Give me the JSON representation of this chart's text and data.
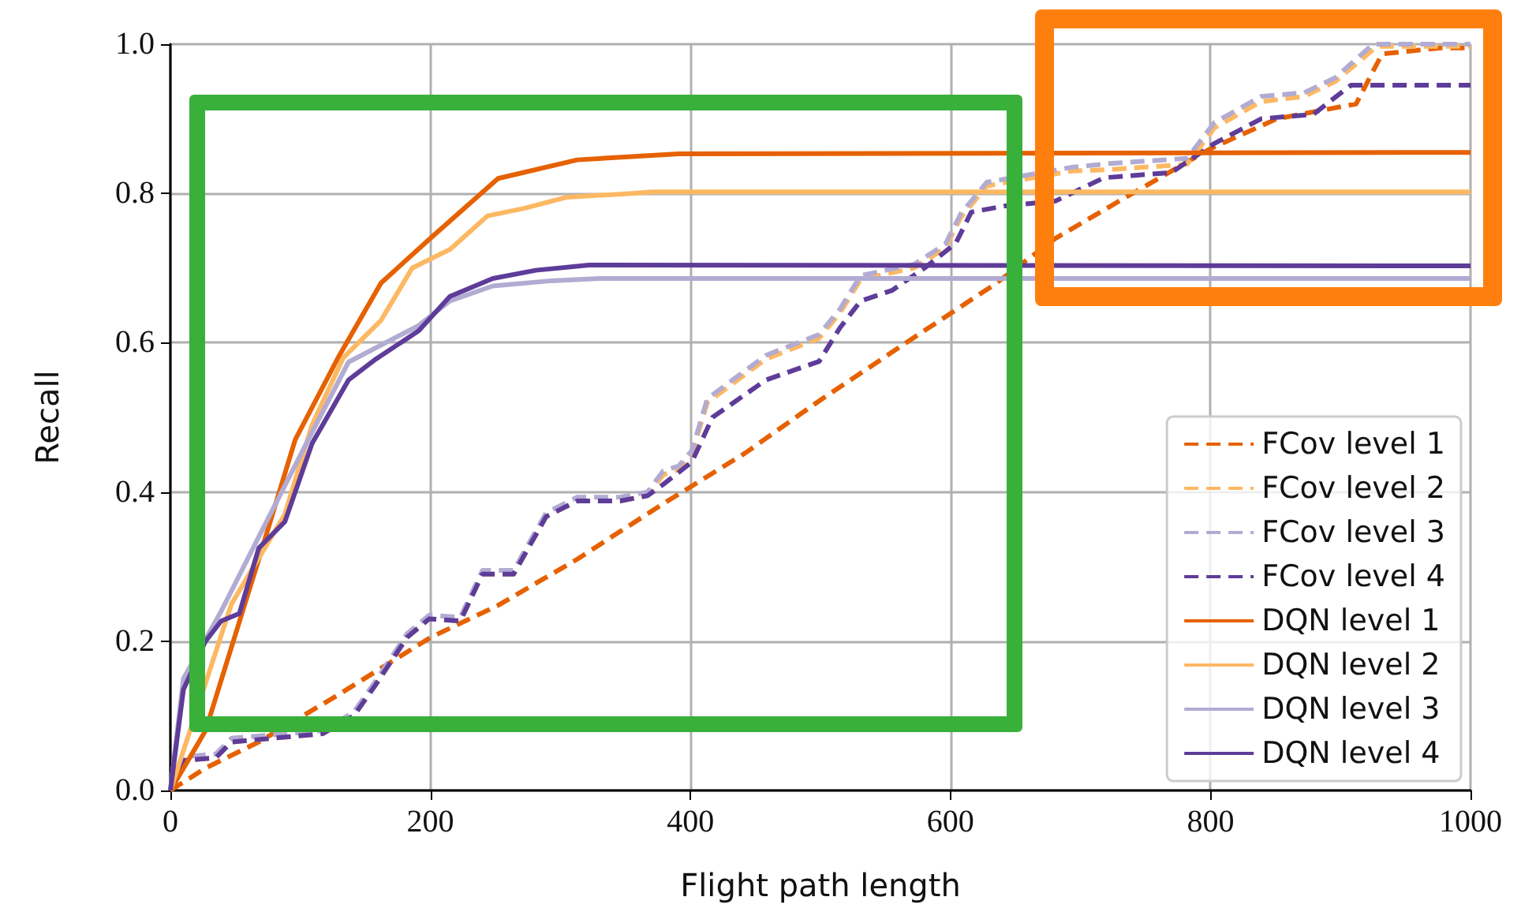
{
  "chart_data": {
    "type": "line",
    "xlabel": "Flight path length",
    "ylabel": "Recall",
    "xlim": [
      0,
      1000
    ],
    "ylim": [
      0,
      1
    ],
    "xticks": [
      0,
      200,
      400,
      600,
      800,
      1000
    ],
    "yticks": [
      {
        "value": 0,
        "label": "0.0"
      },
      {
        "value": 0.2,
        "label": "0.2"
      },
      {
        "value": 0.4,
        "label": "0.4"
      },
      {
        "value": 0.6,
        "label": "0.6"
      },
      {
        "value": 0.8,
        "label": "0.8"
      },
      {
        "value": 1,
        "label": "1.0"
      }
    ],
    "grid": true,
    "legend": "bottom right",
    "marker": "none",
    "series": [
      {
        "name": "FCov level 1",
        "color": "#e66101",
        "line_style": "dashed",
        "x": [
          0,
          27,
          68,
          129,
          200,
          252,
          313,
          377,
          442,
          499,
          572,
          633,
          681,
          730,
          800,
          851,
          912,
          932,
          977,
          1000
        ],
        "values": [
          0,
          0.03,
          0.065,
          0.128,
          0.205,
          0.248,
          0.31,
          0.382,
          0.452,
          0.522,
          0.607,
          0.677,
          0.74,
          0.79,
          0.86,
          0.9,
          0.92,
          0.987,
          0.995,
          0.995
        ]
      },
      {
        "name": "FCov level 2",
        "color": "#fdb863",
        "line_style": "dashed",
        "x": [
          0,
          10,
          35,
          47,
          117,
          141,
          158,
          182,
          199,
          223,
          240,
          264,
          289,
          313,
          346,
          367,
          379,
          391,
          401,
          413,
          458,
          499,
          515,
          531,
          572,
          596,
          608,
          628,
          693,
          722,
          782,
          803,
          839,
          872,
          896,
          928,
          1000
        ],
        "values": [
          0,
          0.04,
          0.044,
          0.065,
          0.076,
          0.1,
          0.142,
          0.205,
          0.23,
          0.227,
          0.29,
          0.29,
          0.367,
          0.388,
          0.388,
          0.395,
          0.423,
          0.43,
          0.45,
          0.52,
          0.578,
          0.606,
          0.64,
          0.685,
          0.7,
          0.727,
          0.768,
          0.81,
          0.83,
          0.832,
          0.839,
          0.888,
          0.923,
          0.93,
          0.95,
          0.997,
          0.997
        ]
      },
      {
        "name": "FCov level 3",
        "color": "#b2abd2",
        "line_style": "dashed",
        "x": [
          0,
          10,
          35,
          47,
          117,
          141,
          158,
          182,
          199,
          223,
          240,
          264,
          289,
          313,
          346,
          367,
          379,
          391,
          401,
          413,
          458,
          499,
          515,
          531,
          572,
          596,
          608,
          628,
          693,
          722,
          782,
          803,
          839,
          872,
          896,
          925,
          1000
        ],
        "values": [
          0,
          0.045,
          0.049,
          0.07,
          0.08,
          0.105,
          0.147,
          0.21,
          0.235,
          0.232,
          0.295,
          0.295,
          0.372,
          0.393,
          0.393,
          0.4,
          0.428,
          0.435,
          0.455,
          0.525,
          0.583,
          0.611,
          0.645,
          0.69,
          0.705,
          0.732,
          0.773,
          0.815,
          0.835,
          0.84,
          0.847,
          0.895,
          0.93,
          0.935,
          0.955,
          1,
          1
        ]
      },
      {
        "name": "FCov level 4",
        "color": "#5e3c99",
        "line_style": "dashed",
        "x": [
          0,
          10,
          35,
          47,
          117,
          141,
          158,
          182,
          199,
          223,
          240,
          264,
          289,
          313,
          346,
          367,
          379,
          401,
          417,
          458,
          499,
          515,
          531,
          555,
          580,
          604,
          616,
          641,
          681,
          718,
          770,
          803,
          839,
          879,
          908,
          1000
        ],
        "values": [
          0,
          0.04,
          0.044,
          0.065,
          0.076,
          0.1,
          0.142,
          0.205,
          0.23,
          0.227,
          0.29,
          0.29,
          0.367,
          0.388,
          0.388,
          0.395,
          0.41,
          0.44,
          0.5,
          0.55,
          0.575,
          0.62,
          0.656,
          0.67,
          0.7,
          0.733,
          0.775,
          0.783,
          0.79,
          0.821,
          0.828,
          0.867,
          0.9,
          0.906,
          0.945,
          0.945
        ]
      },
      {
        "name": "DQN level 1",
        "color": "#e66101",
        "line_style": "solid",
        "x": [
          0,
          27,
          68,
          96,
          129,
          162,
          200,
          252,
          313,
          391,
          1000
        ],
        "values": [
          0,
          0.08,
          0.31,
          0.47,
          0.58,
          0.68,
          0.74,
          0.82,
          0.845,
          0.853,
          0.855
        ]
      },
      {
        "name": "DQN level 2",
        "color": "#fdb863",
        "line_style": "solid",
        "x": [
          0,
          47,
          88,
          109,
          133,
          162,
          186,
          215,
          244,
          272,
          305,
          355,
          370,
          1000
        ],
        "values": [
          0,
          0.25,
          0.37,
          0.49,
          0.58,
          0.63,
          0.7,
          0.725,
          0.77,
          0.78,
          0.795,
          0.8,
          0.802,
          0.802
        ]
      },
      {
        "name": "DQN level 3",
        "color": "#b2abd2",
        "line_style": "solid",
        "x": [
          0,
          10,
          39,
          68,
          109,
          137,
          191,
          215,
          248,
          293,
          330,
          1000
        ],
        "values": [
          0,
          0.15,
          0.24,
          0.34,
          0.48,
          0.574,
          0.623,
          0.656,
          0.676,
          0.683,
          0.686,
          0.686
        ]
      },
      {
        "name": "DQN level 4",
        "color": "#5e3c99",
        "line_style": "solid",
        "x": [
          0,
          10,
          27,
          39,
          53,
          68,
          88,
          109,
          137,
          158,
          191,
          215,
          248,
          281,
          322,
          1000
        ],
        "values": [
          0,
          0.135,
          0.2,
          0.227,
          0.237,
          0.325,
          0.36,
          0.465,
          0.55,
          0.578,
          0.616,
          0.662,
          0.686,
          0.697,
          0.704,
          0.703
        ]
      }
    ]
  }
}
